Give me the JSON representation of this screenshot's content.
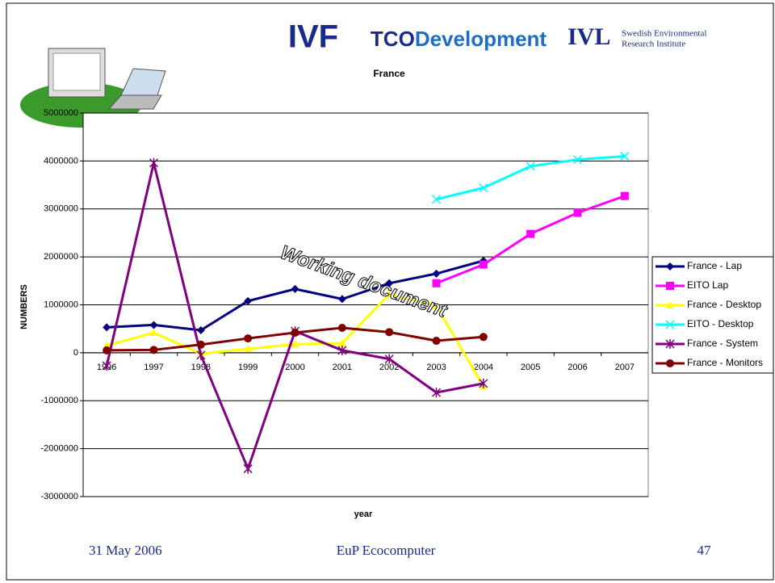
{
  "logos": {
    "ivf": "IVF",
    "tco": [
      "TCO",
      "Development"
    ],
    "ivl": [
      "IVL",
      "Swedish Environmental",
      "Research Institute"
    ]
  },
  "footer": {
    "date": "31 May 2006",
    "center": "EuP Ecocomputer",
    "page": "47"
  },
  "chart_data": {
    "type": "line",
    "title": "France",
    "x_label": "year",
    "y_label": "NUMBERS",
    "annotation": "Working document",
    "categories": [
      "1996",
      "1997",
      "1998",
      "1999",
      "2000",
      "2001",
      "2002",
      "2003",
      "2004",
      "2005",
      "2006",
      "2007"
    ],
    "ylim": [
      -3000000,
      5000000
    ],
    "yticks": [
      -3000000,
      -2000000,
      -1000000,
      0,
      1000000,
      2000000,
      3000000,
      4000000,
      5000000
    ],
    "grid": true,
    "legend": "right",
    "series": [
      {
        "name": "France - Lap",
        "color": "#000080",
        "marker": "diamond",
        "values": [
          530000,
          580000,
          470000,
          1080000,
          1330000,
          1120000,
          1450000,
          1650000,
          1920000,
          null,
          null,
          null
        ]
      },
      {
        "name": "EITO Lap",
        "color": "#ff00ff",
        "marker": "square",
        "values": [
          null,
          null,
          null,
          null,
          null,
          null,
          null,
          1450000,
          1840000,
          2480000,
          2920000,
          3270000
        ]
      },
      {
        "name": "France - Desktop",
        "color": "#ffff00",
        "marker": "triangle",
        "values": [
          150000,
          420000,
          -20000,
          80000,
          180000,
          200000,
          1220000,
          980000,
          -700000,
          null,
          null,
          null
        ]
      },
      {
        "name": "EITO - Desktop",
        "color": "#00ffff",
        "marker": "x",
        "values": [
          null,
          null,
          null,
          null,
          null,
          null,
          null,
          3200000,
          3440000,
          3890000,
          4030000,
          4100000
        ]
      },
      {
        "name": "France - System",
        "color": "#800080",
        "marker": "star",
        "values": [
          -270000,
          3960000,
          -50000,
          -2420000,
          450000,
          50000,
          -130000,
          -830000,
          -640000,
          null,
          null,
          null
        ]
      },
      {
        "name": "France - Monitors",
        "color": "#800000",
        "marker": "circle",
        "values": [
          50000,
          60000,
          170000,
          300000,
          420000,
          520000,
          430000,
          250000,
          330000,
          null,
          null,
          null
        ]
      }
    ]
  }
}
